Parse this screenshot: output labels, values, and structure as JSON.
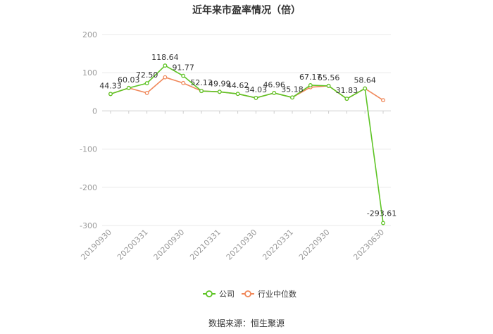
{
  "title": "近年来市盈率情况（倍）",
  "source": "数据来源：恒生聚源",
  "colors": {
    "company": "#5ec425",
    "industry": "#f0885a",
    "grid": "#e8e8e8",
    "axis": "#cccccc"
  },
  "chart_data": {
    "type": "line",
    "title": "近年来市盈率情况（倍）",
    "ylim": [
      -300,
      200
    ],
    "yticks": [
      200,
      100,
      0,
      -100,
      -200,
      -300
    ],
    "grid": true,
    "legend_position": "bottom",
    "x_tick_labels": [
      "20190930",
      "20200331",
      "20200930",
      "20210331",
      "20210930",
      "20220331",
      "20220930",
      "20230630"
    ],
    "x": [
      "20190930",
      "20191231",
      "20200331",
      "20200630",
      "20200930",
      "20201231",
      "20210331",
      "20210630",
      "20210930",
      "20211231",
      "20220331",
      "20220630",
      "20220930",
      "20221231",
      "20230331",
      "20230630"
    ],
    "series": [
      {
        "name": "公司",
        "values": [
          44.33,
          60.03,
          72.5,
          118.64,
          91.77,
          52.13,
          49.99,
          44.62,
          34.03,
          46.96,
          35.18,
          67.17,
          65.56,
          31.83,
          58.64,
          -293.61
        ],
        "labels": [
          "44.33",
          "60.03",
          "72.50",
          "118.64",
          "91.77",
          "52.13",
          "49.99",
          "44.62",
          "34.03",
          "46.96",
          "35.18",
          "67.17",
          "65.56",
          "31.83",
          "58.64",
          "-293.61"
        ]
      },
      {
        "name": "行业中位数",
        "values": [
          44.33,
          60.03,
          47,
          88,
          73,
          52.13,
          49.99,
          44.62,
          34.03,
          46.96,
          35.18,
          62,
          65.56,
          31.83,
          58.64,
          28
        ]
      }
    ]
  }
}
